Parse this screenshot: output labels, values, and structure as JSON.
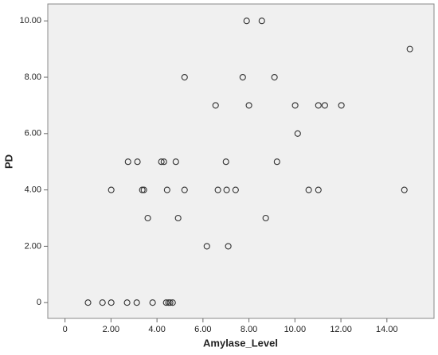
{
  "chart_data": {
    "type": "scatter",
    "x_label": "Amylase_Level",
    "y_label": "PD",
    "series": [
      {
        "color": "#333333",
        "x": [
          1.0,
          1.63,
          2.01,
          2.7,
          3.12,
          3.81,
          4.4,
          4.5,
          4.57,
          4.68,
          6.17,
          7.1,
          3.6,
          4.92,
          8.73,
          2.01,
          3.36,
          3.43,
          4.44,
          5.2,
          6.65,
          7.03,
          7.42,
          10.6,
          11.02,
          14.76,
          2.74,
          3.15,
          4.19,
          4.3,
          4.82,
          7.0,
          9.22,
          10.12,
          6.55,
          8.0,
          10.01,
          11.02,
          11.3,
          12.02,
          5.2,
          7.73,
          9.11,
          15.0,
          7.9,
          8.56
        ],
        "values": [
          0,
          0,
          0,
          0,
          0,
          0,
          0,
          0,
          0,
          0,
          2,
          2,
          3,
          3,
          3,
          4,
          4,
          4,
          4,
          4,
          4,
          4,
          4,
          4,
          4,
          4,
          5,
          5,
          5,
          5,
          5,
          5,
          5,
          6,
          7,
          7,
          7,
          7,
          7,
          7,
          8,
          8,
          8,
          9,
          10,
          10
        ]
      }
    ],
    "xlim": [
      -0.75,
      16.05
    ],
    "xticks": [
      0,
      {
        "value": 2,
        "label": "2.00"
      },
      {
        "value": 4,
        "label": "4.00"
      },
      {
        "value": 6,
        "label": "6.00"
      },
      {
        "value": 8,
        "label": "8.00"
      },
      {
        "value": 10,
        "label": "10.00"
      },
      {
        "value": 12,
        "label": "12.00"
      },
      {
        "value": 14,
        "label": "14.00"
      }
    ],
    "ylim": [
      -0.56,
      10.6
    ],
    "yticks": [
      0,
      {
        "value": 2,
        "label": "2.00"
      },
      {
        "value": 4,
        "label": "4.00"
      },
      {
        "value": 6,
        "label": "6.00"
      },
      {
        "value": 8,
        "label": "8.00"
      },
      {
        "value": 10,
        "label": "10.00"
      }
    ],
    "grid": false
  }
}
